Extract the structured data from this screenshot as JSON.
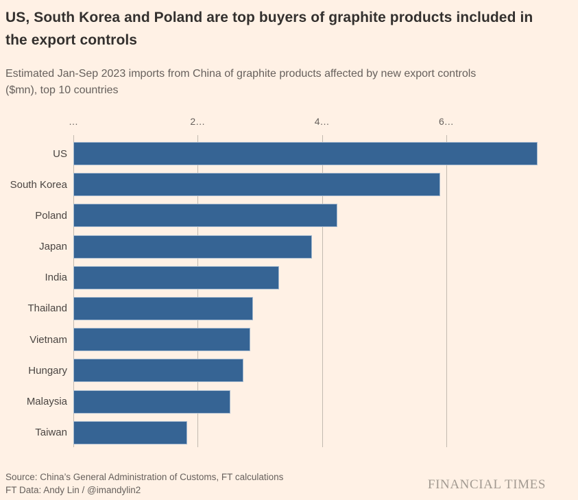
{
  "header": {
    "title_lines": [
      "US, South Korea and Poland are top buyers of graphite products included in",
      "the export controls"
    ],
    "subtitle_lines": [
      "Estimated Jan-Sep 2023 imports from China of graphite products affected by new export controls",
      "($mn), top 10 countries"
    ]
  },
  "chart_data": {
    "type": "bar",
    "orientation": "horizontal",
    "title": "US, South Korea and Poland are top buyers of graphite products included in the export controls",
    "subtitle": "Estimated Jan-Sep 2023 imports from China of graphite products affected by new export controls ($mn), top 10 countries",
    "categories": [
      "US",
      "South Korea",
      "Poland",
      "Japan",
      "India",
      "Thailand",
      "Vietnam",
      "Hungary",
      "Malaysia",
      "Taiwan"
    ],
    "values": [
      747,
      590,
      425,
      384,
      331,
      289,
      285,
      274,
      253,
      183
    ],
    "unit": "$mn",
    "xlim": [
      0,
      812
    ],
    "x_ticks": [
      {
        "value": 0,
        "label": "…"
      },
      {
        "value": 200,
        "label": "2…"
      },
      {
        "value": 400,
        "label": "4…"
      },
      {
        "value": 600,
        "label": "6…"
      }
    ],
    "grid": "vertical gridlines, ticks on top axis",
    "legend": "none",
    "bar_color": "#366494",
    "background_color": "#fff1e5",
    "gridline_color": "#c2b9af"
  },
  "footer": {
    "source_line1": "Source: China’s General Administration of Customs, FT calculations",
    "source_line2": "FT Data: Andy Lin / @imandylin2",
    "brand": "FINANCIAL TIMES"
  }
}
